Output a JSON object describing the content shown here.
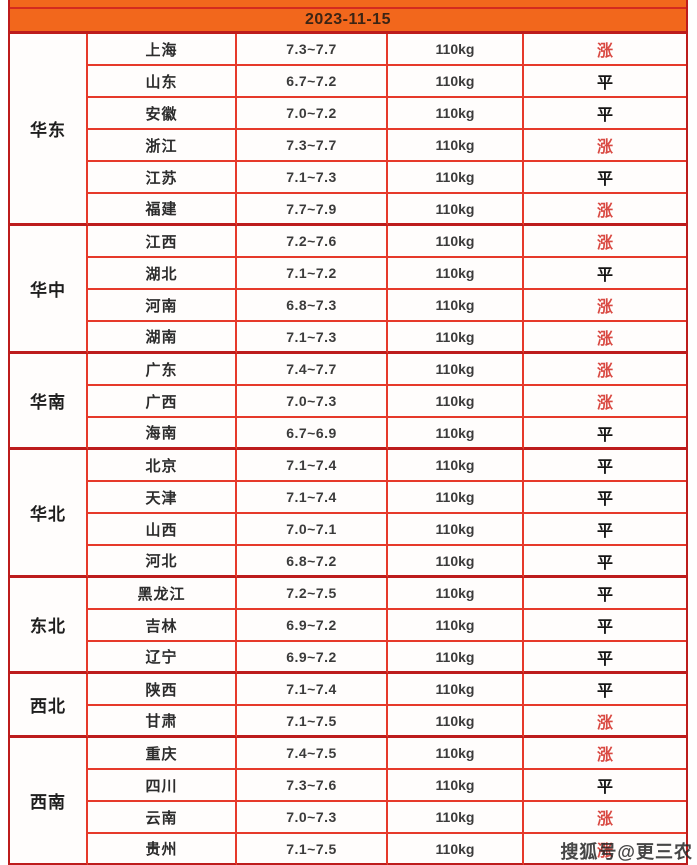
{
  "header": {
    "date": "2023-11-15"
  },
  "watermark": {
    "text": "搜狐号@更三农"
  },
  "colors": {
    "header_orange": "#f2671c",
    "outer_border_red": "#bd1c1c",
    "inner_border_red": "#e6392a",
    "trend_rise_red": "#d94a43",
    "trend_flat_black": "#141414"
  },
  "chart_data": {
    "type": "table",
    "title": "2023-11-15",
    "weight_label": "110kg",
    "trend_labels": {
      "rise": "涨",
      "flat": "平"
    },
    "regions": [
      {
        "name": "华东",
        "provinces": [
          {
            "name": "上海",
            "price": "7.3~7.7",
            "weight": "110kg",
            "trend": "涨",
            "trend_type": "rise"
          },
          {
            "name": "山东",
            "price": "6.7~7.2",
            "weight": "110kg",
            "trend": "平",
            "trend_type": "flat"
          },
          {
            "name": "安徽",
            "price": "7.0~7.2",
            "weight": "110kg",
            "trend": "平",
            "trend_type": "flat"
          },
          {
            "name": "浙江",
            "price": "7.3~7.7",
            "weight": "110kg",
            "trend": "涨",
            "trend_type": "rise"
          },
          {
            "name": "江苏",
            "price": "7.1~7.3",
            "weight": "110kg",
            "trend": "平",
            "trend_type": "flat"
          },
          {
            "name": "福建",
            "price": "7.7~7.9",
            "weight": "110kg",
            "trend": "涨",
            "trend_type": "rise"
          }
        ]
      },
      {
        "name": "华中",
        "provinces": [
          {
            "name": "江西",
            "price": "7.2~7.6",
            "weight": "110kg",
            "trend": "涨",
            "trend_type": "rise"
          },
          {
            "name": "湖北",
            "price": "7.1~7.2",
            "weight": "110kg",
            "trend": "平",
            "trend_type": "flat"
          },
          {
            "name": "河南",
            "price": "6.8~7.3",
            "weight": "110kg",
            "trend": "涨",
            "trend_type": "rise"
          },
          {
            "name": "湖南",
            "price": "7.1~7.3",
            "weight": "110kg",
            "trend": "涨",
            "trend_type": "rise"
          }
        ]
      },
      {
        "name": "华南",
        "provinces": [
          {
            "name": "广东",
            "price": "7.4~7.7",
            "weight": "110kg",
            "trend": "涨",
            "trend_type": "rise"
          },
          {
            "name": "广西",
            "price": "7.0~7.3",
            "weight": "110kg",
            "trend": "涨",
            "trend_type": "rise"
          },
          {
            "name": "海南",
            "price": "6.7~6.9",
            "weight": "110kg",
            "trend": "平",
            "trend_type": "flat"
          }
        ]
      },
      {
        "name": "华北",
        "provinces": [
          {
            "name": "北京",
            "price": "7.1~7.4",
            "weight": "110kg",
            "trend": "平",
            "trend_type": "flat"
          },
          {
            "name": "天津",
            "price": "7.1~7.4",
            "weight": "110kg",
            "trend": "平",
            "trend_type": "flat"
          },
          {
            "name": "山西",
            "price": "7.0~7.1",
            "weight": "110kg",
            "trend": "平",
            "trend_type": "flat"
          },
          {
            "name": "河北",
            "price": "6.8~7.2",
            "weight": "110kg",
            "trend": "平",
            "trend_type": "flat"
          }
        ]
      },
      {
        "name": "东北",
        "provinces": [
          {
            "name": "黑龙江",
            "price": "7.2~7.5",
            "weight": "110kg",
            "trend": "平",
            "trend_type": "flat"
          },
          {
            "name": "吉林",
            "price": "6.9~7.2",
            "weight": "110kg",
            "trend": "平",
            "trend_type": "flat"
          },
          {
            "name": "辽宁",
            "price": "6.9~7.2",
            "weight": "110kg",
            "trend": "平",
            "trend_type": "flat"
          }
        ]
      },
      {
        "name": "西北",
        "provinces": [
          {
            "name": "陕西",
            "price": "7.1~7.4",
            "weight": "110kg",
            "trend": "平",
            "trend_type": "flat"
          },
          {
            "name": "甘肃",
            "price": "7.1~7.5",
            "weight": "110kg",
            "trend": "涨",
            "trend_type": "rise"
          }
        ]
      },
      {
        "name": "西南",
        "provinces": [
          {
            "name": "重庆",
            "price": "7.4~7.5",
            "weight": "110kg",
            "trend": "涨",
            "trend_type": "rise"
          },
          {
            "name": "四川",
            "price": "7.3~7.6",
            "weight": "110kg",
            "trend": "平",
            "trend_type": "flat"
          },
          {
            "name": "云南",
            "price": "7.0~7.3",
            "weight": "110kg",
            "trend": "涨",
            "trend_type": "rise"
          },
          {
            "name": "贵州",
            "price": "7.1~7.5",
            "weight": "110kg",
            "trend": "涨",
            "trend_type": "rise"
          }
        ]
      }
    ]
  }
}
